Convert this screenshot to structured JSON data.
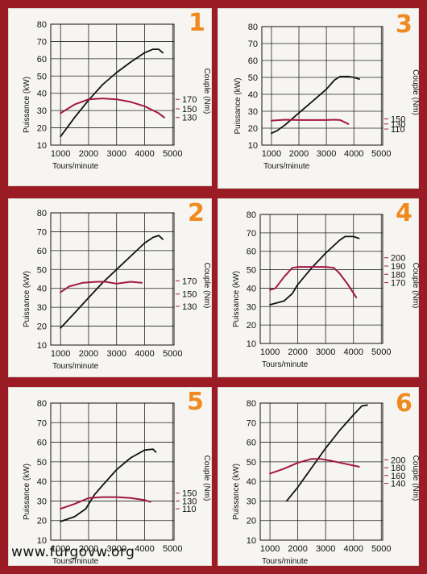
{
  "watermark": "www.furgovw.org",
  "colors": {
    "background": "#9b1c24",
    "panel": "#f6f5f1",
    "power_line": "#111111",
    "torque_line": "#a3174a",
    "number": "#f08a1f"
  },
  "chart_data": [
    {
      "id": "1",
      "type": "line",
      "xlabel": "Tours/minute",
      "ylabel": "Puissance (kW)",
      "y2label": "Couple (Nm)",
      "xticks": [
        1000,
        2000,
        3000,
        4000,
        5000
      ],
      "xlim": [
        650,
        5050
      ],
      "yticks": [
        10,
        20,
        30,
        40,
        50,
        60,
        70,
        80
      ],
      "ylim": [
        10,
        80
      ],
      "y2ticks": [
        "130",
        "150",
        "170"
      ],
      "y2tick_positions": [
        26,
        31,
        36.5
      ],
      "grid": true,
      "series": [
        {
          "role": "power",
          "color": "#111111",
          "x": [
            1000,
            1500,
            2000,
            2500,
            3000,
            3500,
            4000,
            4300,
            4500,
            4650
          ],
          "y": [
            15,
            26,
            36,
            45,
            52,
            58,
            63.5,
            65.5,
            65.5,
            63.5
          ]
        },
        {
          "role": "torque",
          "color": "#a3174a",
          "x": [
            1000,
            1500,
            2000,
            2500,
            3000,
            3500,
            4000,
            4500,
            4700
          ],
          "y": [
            28.5,
            33.5,
            36.5,
            37,
            36.5,
            35,
            32.5,
            28.5,
            26
          ]
        }
      ]
    },
    {
      "id": "3",
      "type": "line",
      "xlabel": "Tours/minute",
      "ylabel": "Puissance (kW)",
      "y2label": "Couple (Nm)",
      "xticks": [
        1000,
        2000,
        3000,
        4000,
        5000
      ],
      "xlim": [
        650,
        5050
      ],
      "yticks": [
        10,
        20,
        30,
        40,
        50,
        60,
        70,
        80
      ],
      "ylim": [
        10,
        80
      ],
      "y2ticks": [
        "110",
        "130",
        "150"
      ],
      "y2tick_positions": [
        19.5,
        22.5,
        25.5
      ],
      "grid": true,
      "series": [
        {
          "role": "power",
          "color": "#111111",
          "x": [
            1000,
            1200,
            1500,
            2000,
            2500,
            3000,
            3300,
            3500,
            3800,
            4000,
            4200
          ],
          "y": [
            17,
            18.5,
            22,
            29,
            36,
            43,
            48.5,
            50.5,
            50.5,
            50,
            49
          ]
        },
        {
          "role": "torque",
          "color": "#a3174a",
          "x": [
            1000,
            1500,
            2000,
            2500,
            3000,
            3300,
            3500,
            3800
          ],
          "y": [
            24.5,
            25,
            24.8,
            24.8,
            24.8,
            25,
            24.8,
            22.5
          ]
        }
      ]
    },
    {
      "id": "2",
      "type": "line",
      "xlabel": "Tours/minute",
      "ylabel": "Puissance (kW)",
      "y2label": "Couple (Nm)",
      "xticks": [
        1000,
        2000,
        3000,
        4000,
        5000
      ],
      "xlim": [
        650,
        5050
      ],
      "yticks": [
        10,
        20,
        30,
        40,
        50,
        60,
        70,
        80
      ],
      "ylim": [
        10,
        80
      ],
      "y2ticks": [
        "130",
        "150",
        "170"
      ],
      "y2tick_positions": [
        30.5,
        37,
        44
      ],
      "grid": true,
      "series": [
        {
          "role": "power",
          "color": "#111111",
          "x": [
            1000,
            1500,
            2000,
            2500,
            3000,
            3500,
            4000,
            4300,
            4500,
            4650
          ],
          "y": [
            19,
            27,
            35,
            43,
            50,
            57,
            64,
            67,
            68,
            66
          ]
        },
        {
          "role": "torque",
          "color": "#a3174a",
          "x": [
            1000,
            1300,
            1800,
            2300,
            2600,
            3000,
            3500,
            3900
          ],
          "y": [
            38,
            41,
            43,
            43.5,
            43.5,
            42.5,
            43.5,
            43
          ]
        }
      ]
    },
    {
      "id": "4",
      "type": "line",
      "xlabel": "Tours/minute",
      "ylabel": "Puissance (kW)",
      "y2label": "Couple (Nm)",
      "xticks": [
        1000,
        2000,
        3000,
        4000,
        5000
      ],
      "xlim": [
        650,
        5050
      ],
      "yticks": [
        10,
        20,
        30,
        40,
        50,
        60,
        70,
        80
      ],
      "ylim": [
        10,
        80
      ],
      "y2ticks": [
        "170",
        "180",
        "190",
        "200"
      ],
      "y2tick_positions": [
        43,
        47.5,
        52,
        56.5
      ],
      "grid": true,
      "series": [
        {
          "role": "power",
          "color": "#111111",
          "x": [
            1000,
            1500,
            1800,
            2000,
            2500,
            3000,
            3500,
            3700,
            4000,
            4200
          ],
          "y": [
            31,
            33,
            37,
            42,
            51,
            59,
            66,
            68,
            68,
            67
          ]
        },
        {
          "role": "torque",
          "color": "#a3174a",
          "x": [
            1000,
            1200,
            1500,
            1800,
            2000,
            2500,
            3000,
            3300,
            3500,
            3800,
            4100
          ],
          "y": [
            39,
            40,
            46,
            51,
            51.5,
            51.5,
            51.5,
            51,
            48,
            42,
            35
          ]
        }
      ]
    },
    {
      "id": "5",
      "type": "line",
      "xlabel": "Tours/minute",
      "ylabel": "Puissance (kW)",
      "y2label": "Couple (Nm)",
      "xticks": [
        1000,
        2000,
        3000,
        4000,
        5000
      ],
      "xlim": [
        650,
        5050
      ],
      "yticks": [
        10,
        20,
        30,
        40,
        50,
        60,
        70,
        80
      ],
      "ylim": [
        10,
        80
      ],
      "y2ticks": [
        "110",
        "130",
        "150"
      ],
      "y2tick_positions": [
        26,
        30,
        34
      ],
      "grid": true,
      "series": [
        {
          "role": "power",
          "color": "#111111",
          "x": [
            1000,
            1500,
            1900,
            2200,
            2500,
            3000,
            3500,
            4000,
            4300,
            4400
          ],
          "y": [
            19.5,
            22,
            26,
            33,
            38,
            46,
            52,
            56,
            56.5,
            55
          ]
        },
        {
          "role": "torque",
          "color": "#a3174a",
          "x": [
            1000,
            1500,
            2000,
            2500,
            3000,
            3500,
            4000,
            4200
          ],
          "y": [
            26,
            28.5,
            31.5,
            32,
            32,
            31.5,
            30.5,
            29.5
          ]
        }
      ]
    },
    {
      "id": "6",
      "type": "line",
      "xlabel": "Tours/minute",
      "ylabel": "Puissance (kW)",
      "y2label": "Couple (Nm)",
      "xticks": [
        1000,
        2000,
        3000,
        4000,
        5000
      ],
      "xlim": [
        650,
        5050
      ],
      "yticks": [
        10,
        20,
        30,
        40,
        50,
        60,
        70,
        80
      ],
      "ylim": [
        10,
        80
      ],
      "y2ticks": [
        "140",
        "160",
        "180",
        "200"
      ],
      "y2tick_positions": [
        39,
        43,
        47,
        51
      ],
      "grid": true,
      "series": [
        {
          "role": "power",
          "color": "#111111",
          "x": [
            1600,
            2000,
            2500,
            3000,
            3500,
            4000,
            4300,
            4500
          ],
          "y": [
            30,
            37,
            47,
            57,
            66,
            74,
            78.5,
            79
          ]
        },
        {
          "role": "torque",
          "color": "#a3174a",
          "x": [
            1000,
            1500,
            2000,
            2500,
            2800,
            3200,
            3700,
            4200
          ],
          "y": [
            44,
            46.5,
            49.5,
            51.5,
            51.5,
            50.5,
            49,
            47.5
          ]
        }
      ]
    }
  ]
}
